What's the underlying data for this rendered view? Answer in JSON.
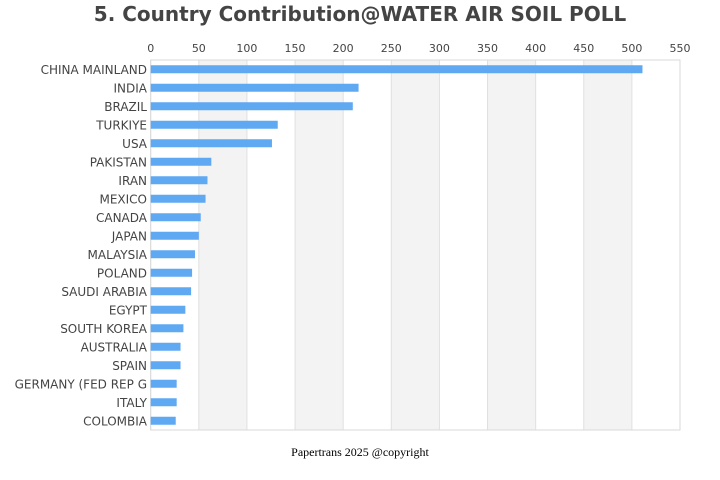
{
  "chart_data": {
    "type": "bar",
    "orientation": "horizontal",
    "title": "5. Country Contribution@WATER AIR SOIL POLL",
    "xlabel": "",
    "ylabel": "",
    "xlim": [
      0,
      550
    ],
    "x_ticks": [
      0,
      50,
      100,
      150,
      200,
      250,
      300,
      350,
      400,
      450,
      500,
      550
    ],
    "x_axis_position": "top",
    "grid": "alternating vertical bands",
    "bar_color": "#5fa8f2",
    "band_color": "#f3f3f3",
    "categories": [
      "CHINA MAINLAND",
      "INDIA",
      "BRAZIL",
      "TURKIYE",
      "USA",
      "PAKISTAN",
      "IRAN",
      "MEXICO",
      "CANADA",
      "JAPAN",
      "MALAYSIA",
      "POLAND",
      "SAUDI ARABIA",
      "EGYPT",
      "SOUTH KOREA",
      "AUSTRALIA",
      "SPAIN",
      "GERMANY (FED REP G",
      "ITALY",
      "COLOMBIA"
    ],
    "values": [
      511,
      216,
      210,
      132,
      126,
      63,
      59,
      57,
      52,
      50,
      46,
      43,
      42,
      36,
      34,
      31,
      31,
      27,
      27,
      26
    ]
  },
  "footer": "Papertrans 2025 @copyright"
}
